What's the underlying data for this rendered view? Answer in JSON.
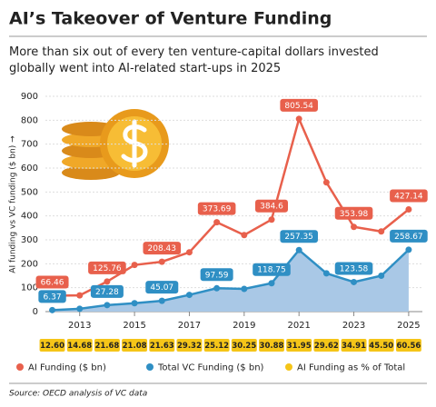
{
  "chart_data": {
    "type": "line",
    "title": "AI’s Takeover of Venture Funding",
    "subtitle": "More than six out of every ten venture-capital dollars invested globally went into AI-related start-ups in 2025",
    "y_label": "AI funding vs VC funding ($ bn) →",
    "source": "Source: OECD analysis of VC data",
    "x": [
      2012,
      2013,
      2014,
      2015,
      2016,
      2017,
      2018,
      2019,
      2020,
      2021,
      2022,
      2023,
      2024,
      2025
    ],
    "xlim": [
      2011.75,
      2025.5
    ],
    "xticks": [
      2013,
      2015,
      2017,
      2019,
      2021,
      2023,
      2025
    ],
    "ylim": [
      0,
      900
    ],
    "yticks": [
      0,
      100,
      200,
      300,
      400,
      500,
      600,
      700,
      800,
      900
    ],
    "grid": true,
    "series": [
      {
        "name": "AI Funding ($ bn)",
        "color": "#e8604c",
        "values": [
          66.46,
          68,
          125.76,
          195,
          208.43,
          248,
          373.69,
          320,
          384.6,
          805.54,
          540,
          353.98,
          335,
          427.14
        ],
        "value_labels": [
          "66.46",
          null,
          "125.76",
          null,
          "208.43",
          null,
          "373.69",
          null,
          "384.6",
          "805.54",
          null,
          "353.98",
          null,
          "427.14"
        ]
      },
      {
        "name": "Total VC Funding ($ bn)",
        "color": "#2f8fc4",
        "fill": "#a9c8e6",
        "values": [
          6.37,
          12,
          27.28,
          35,
          45.07,
          70,
          97.59,
          95,
          118.75,
          257.35,
          160,
          123.58,
          150,
          258.67
        ],
        "value_labels": [
          "6.37",
          null,
          "27.28",
          null,
          "45.07",
          null,
          "97.59",
          null,
          "118.75",
          "257.35",
          null,
          "123.58",
          null,
          "258.67"
        ]
      },
      {
        "name": "AI Funding as % of Total",
        "color": "#f5c518",
        "values": [
          12.6,
          14.68,
          21.68,
          21.08,
          21.63,
          29.32,
          25.12,
          30.25,
          30.88,
          31.95,
          29.62,
          34.91,
          45.5,
          60.56
        ],
        "value_labels": [
          "12.60",
          "14.68",
          "21.68",
          "21.08",
          "21.63",
          "29.32",
          "25.12",
          "30.25",
          "30.88",
          "31.95",
          "29.62",
          "34.91",
          "45.50",
          "60.56"
        ]
      }
    ]
  }
}
